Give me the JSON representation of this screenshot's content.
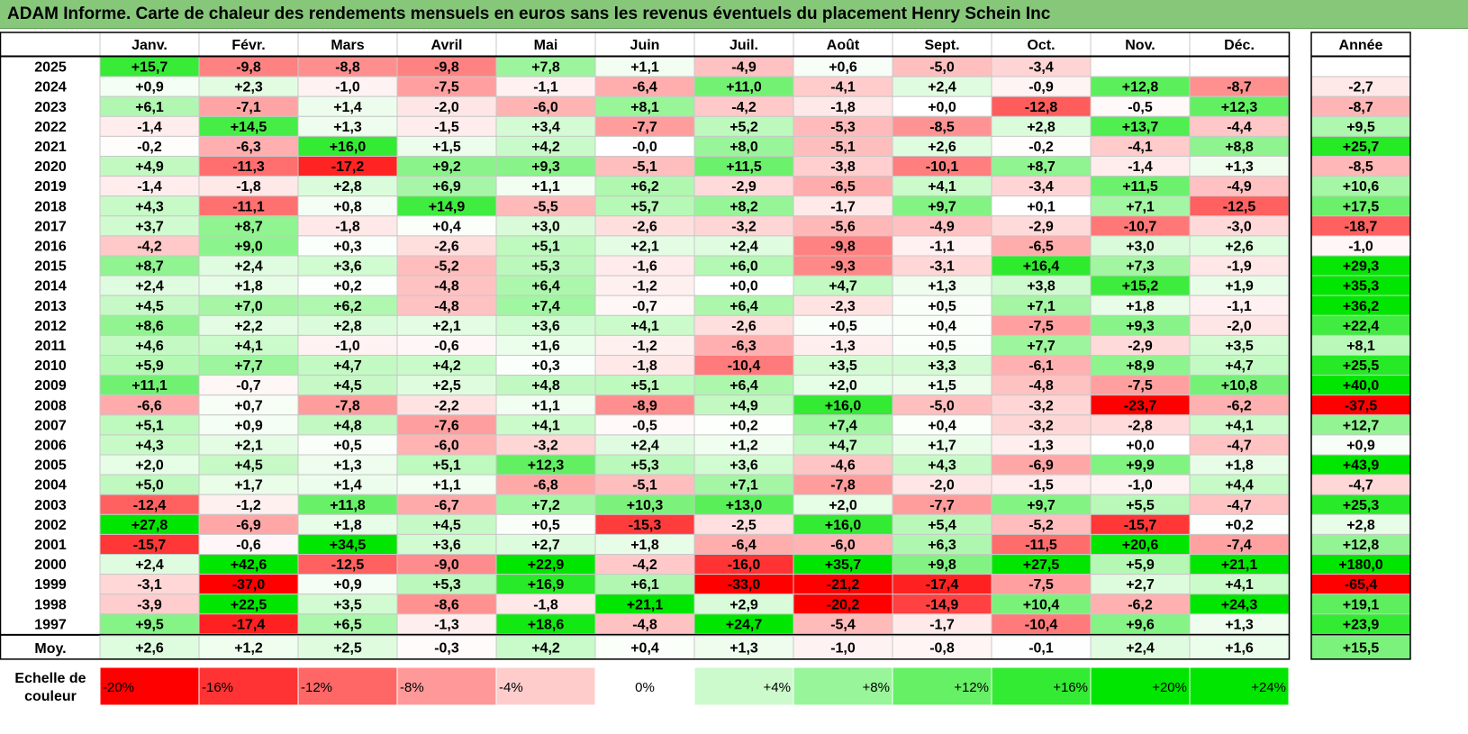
{
  "title": "ADAM Informe. Carte de chaleur des rendements mensuels en euros sans les revenus éventuels du placement Henry Schein Inc",
  "chart_data": {
    "type": "heatmap",
    "title": "ADAM Informe. Carte de chaleur des rendements mensuels en euros sans les revenus éventuels du placement Henry Schein Inc",
    "columns": [
      "Janv.",
      "Févr.",
      "Mars",
      "Avril",
      "Mai",
      "Juin",
      "Juil.",
      "Août",
      "Sept.",
      "Oct.",
      "Nov.",
      "Déc."
    ],
    "year_column_label": "Année",
    "average_row_label": "Moy.",
    "rows": [
      {
        "year": "2025",
        "values": [
          15.7,
          -9.8,
          -8.8,
          -9.8,
          7.8,
          1.1,
          -4.9,
          0.6,
          -5.0,
          -3.4,
          null,
          null
        ],
        "annual": null
      },
      {
        "year": "2024",
        "values": [
          0.9,
          2.3,
          -1.0,
          -7.5,
          -1.1,
          -6.4,
          11.0,
          -4.1,
          2.4,
          -0.9,
          12.8,
          -8.7
        ],
        "annual": -2.7
      },
      {
        "year": "2023",
        "values": [
          6.1,
          -7.1,
          1.4,
          -2.0,
          -6.0,
          8.1,
          -4.2,
          -1.8,
          0.0,
          -12.8,
          -0.5,
          12.3
        ],
        "annual": -8.7
      },
      {
        "year": "2022",
        "values": [
          -1.4,
          14.5,
          1.3,
          -1.5,
          3.4,
          -7.7,
          5.2,
          -5.3,
          -8.5,
          2.8,
          13.7,
          -4.4
        ],
        "annual": 9.5
      },
      {
        "year": "2021",
        "values": [
          -0.2,
          -6.3,
          16.0,
          1.5,
          4.2,
          -0.01,
          8.0,
          -5.1,
          2.6,
          -0.2,
          -4.1,
          8.8
        ],
        "annual": 25.7
      },
      {
        "year": "2020",
        "values": [
          4.9,
          -11.3,
          -17.2,
          9.2,
          9.3,
          -5.1,
          11.5,
          -3.8,
          -10.1,
          8.7,
          -1.4,
          1.3
        ],
        "annual": -8.5
      },
      {
        "year": "2019",
        "values": [
          -1.4,
          -1.8,
          2.8,
          6.9,
          1.1,
          6.2,
          -2.9,
          -6.5,
          4.1,
          -3.4,
          11.5,
          -4.9
        ],
        "annual": 10.6
      },
      {
        "year": "2018",
        "values": [
          4.3,
          -11.1,
          0.8,
          14.9,
          -5.5,
          5.7,
          8.2,
          -1.7,
          9.7,
          0.1,
          7.1,
          -12.5
        ],
        "annual": 17.5
      },
      {
        "year": "2017",
        "values": [
          3.7,
          8.7,
          -1.8,
          0.4,
          3.0,
          -2.6,
          -3.2,
          -5.6,
          -4.9,
          -2.9,
          -10.7,
          -3.0
        ],
        "annual": -18.7
      },
      {
        "year": "2016",
        "values": [
          -4.2,
          9.0,
          0.3,
          -2.6,
          5.1,
          2.1,
          2.4,
          -9.8,
          -1.1,
          -6.5,
          3.0,
          2.6
        ],
        "annual": -1.0
      },
      {
        "year": "2015",
        "values": [
          8.7,
          2.4,
          3.6,
          -5.2,
          5.3,
          -1.6,
          6.0,
          -9.3,
          -3.1,
          16.4,
          7.3,
          -1.9
        ],
        "annual": 29.3
      },
      {
        "year": "2014",
        "values": [
          2.4,
          1.8,
          0.2,
          -4.8,
          6.4,
          -1.2,
          0.0,
          4.7,
          1.3,
          3.8,
          15.2,
          1.9
        ],
        "annual": 35.3
      },
      {
        "year": "2013",
        "values": [
          4.5,
          7.0,
          6.2,
          -4.8,
          7.4,
          -0.7,
          6.4,
          -2.3,
          0.5,
          7.1,
          1.8,
          -1.1
        ],
        "annual": 36.2
      },
      {
        "year": "2012",
        "values": [
          8.6,
          2.2,
          2.8,
          2.1,
          3.6,
          4.1,
          -2.6,
          0.5,
          0.4,
          -7.5,
          9.3,
          -2.0
        ],
        "annual": 22.4
      },
      {
        "year": "2011",
        "values": [
          4.6,
          4.1,
          -1.0,
          -0.6,
          1.6,
          -1.2,
          -6.3,
          -1.3,
          0.5,
          7.7,
          -2.9,
          3.5
        ],
        "annual": 8.1
      },
      {
        "year": "2010",
        "values": [
          5.9,
          7.7,
          4.7,
          4.2,
          0.3,
          -1.8,
          -10.4,
          3.5,
          3.3,
          -6.1,
          8.9,
          4.7
        ],
        "annual": 25.5
      },
      {
        "year": "2009",
        "values": [
          11.1,
          -0.7,
          4.5,
          2.5,
          4.8,
          5.1,
          6.4,
          2.0,
          1.5,
          -4.8,
          -7.5,
          10.8
        ],
        "annual": 40.0
      },
      {
        "year": "2008",
        "values": [
          -6.6,
          0.7,
          -7.8,
          -2.2,
          1.1,
          -8.9,
          4.9,
          16.0,
          -5.0,
          -3.2,
          -23.7,
          -6.2
        ],
        "annual": -37.5
      },
      {
        "year": "2007",
        "values": [
          5.1,
          0.9,
          4.8,
          -7.6,
          4.1,
          -0.5,
          0.2,
          7.4,
          0.4,
          -3.2,
          -2.8,
          4.1
        ],
        "annual": 12.7
      },
      {
        "year": "2006",
        "values": [
          4.3,
          2.1,
          0.5,
          -6.0,
          -3.2,
          2.4,
          1.2,
          4.7,
          1.7,
          -1.3,
          0.0,
          -4.7
        ],
        "annual": 0.9
      },
      {
        "year": "2005",
        "values": [
          2.0,
          4.5,
          1.3,
          5.1,
          12.3,
          5.3,
          3.6,
          -4.6,
          4.3,
          -6.9,
          9.9,
          1.8
        ],
        "annual": 43.9
      },
      {
        "year": "2004",
        "values": [
          5.0,
          1.7,
          1.4,
          1.1,
          -6.8,
          -5.1,
          7.1,
          -7.8,
          -2.0,
          -1.5,
          -1.0,
          4.4
        ],
        "annual": -4.7
      },
      {
        "year": "2003",
        "values": [
          -12.4,
          -1.2,
          11.8,
          -6.7,
          7.2,
          10.3,
          13.0,
          2.0,
          -7.7,
          9.7,
          5.5,
          -4.7
        ],
        "annual": 25.3
      },
      {
        "year": "2002",
        "values": [
          27.8,
          -6.9,
          1.8,
          4.5,
          0.5,
          -15.3,
          -2.5,
          16.0,
          5.4,
          -5.2,
          -15.7,
          0.2
        ],
        "annual": 2.8
      },
      {
        "year": "2001",
        "values": [
          -15.7,
          -0.6,
          34.5,
          3.6,
          2.7,
          1.8,
          -6.4,
          -6.0,
          6.3,
          -11.5,
          20.6,
          -7.4
        ],
        "annual": 12.8
      },
      {
        "year": "2000",
        "values": [
          2.4,
          42.6,
          -12.5,
          -9.0,
          22.9,
          -4.2,
          -16.0,
          35.7,
          9.8,
          27.5,
          5.9,
          21.1
        ],
        "annual": 180.0
      },
      {
        "year": "1999",
        "values": [
          -3.1,
          -37.0,
          0.9,
          5.3,
          16.9,
          6.1,
          -33.0,
          -21.2,
          -17.4,
          -7.5,
          2.7,
          4.1
        ],
        "annual": -65.4
      },
      {
        "year": "1998",
        "values": [
          -3.9,
          22.5,
          3.5,
          -8.6,
          -1.8,
          21.1,
          2.9,
          -20.2,
          -14.9,
          10.4,
          -6.2,
          24.3
        ],
        "annual": 19.1
      },
      {
        "year": "1997",
        "values": [
          9.5,
          -17.4,
          6.5,
          -1.3,
          18.6,
          -4.8,
          24.7,
          -5.4,
          -1.7,
          -10.4,
          9.6,
          1.3
        ],
        "annual": 23.9
      }
    ],
    "average": {
      "values": [
        2.6,
        1.2,
        2.5,
        -0.3,
        4.2,
        0.4,
        1.3,
        -1.0,
        -0.8,
        -0.1,
        2.4,
        1.6
      ],
      "annual": 15.5
    },
    "scale_label_line1": "Echelle de",
    "scale_label_line2": "couleur",
    "scale": [
      {
        "label": "-20%",
        "value": -20
      },
      {
        "label": "-16%",
        "value": -16
      },
      {
        "label": "-12%",
        "value": -12
      },
      {
        "label": "-8%",
        "value": -8
      },
      {
        "label": "-4%",
        "value": -4
      },
      {
        "label": "0%",
        "value": 0
      },
      {
        "label": "+4%",
        "value": 4
      },
      {
        "label": "+8%",
        "value": 8
      },
      {
        "label": "+12%",
        "value": 12
      },
      {
        "label": "+16%",
        "value": 16
      },
      {
        "label": "+20%",
        "value": 20
      },
      {
        "label": "+24%",
        "value": 24
      }
    ],
    "colors": {
      "negative_max": "#ff0000",
      "neutral": "#ffffff",
      "positive_max": "#00e600",
      "title_bar": "#86c77a"
    }
  }
}
